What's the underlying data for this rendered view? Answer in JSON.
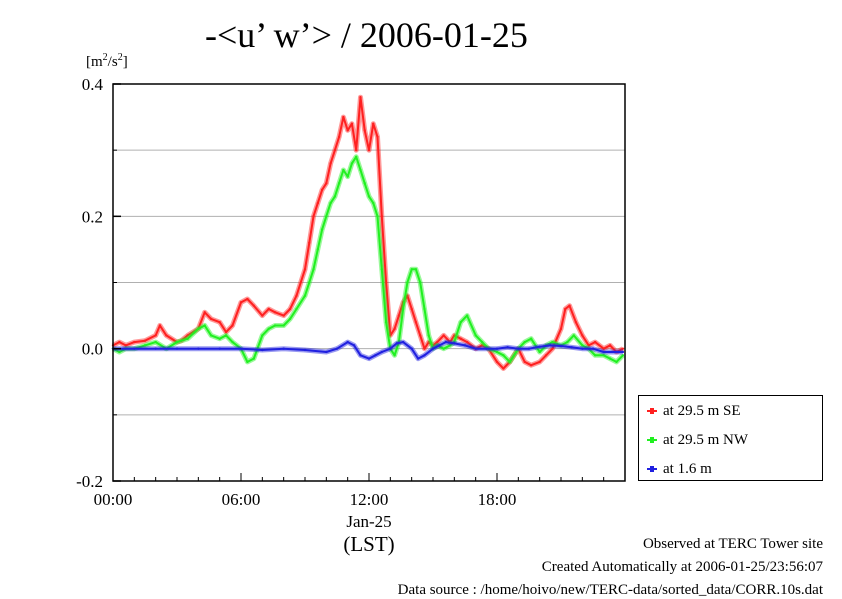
{
  "chart_data": {
    "type": "line",
    "title": "-<u’ w’> / 2006-01-25",
    "ylabel_unit": {
      "base": "[m",
      "sup": "2",
      "mid": "/s",
      "sup2": "2",
      "end": "]"
    },
    "ylim": [
      -0.2,
      0.4
    ],
    "yticks": [
      "-0.2",
      "0.0",
      "0.2",
      "0.4"
    ],
    "xlim": [
      0,
      24
    ],
    "xticks": [
      {
        "value": 0,
        "label": "00:00"
      },
      {
        "value": 6,
        "label": "06:00"
      },
      {
        "value": 12,
        "label": "12:00"
      },
      {
        "value": 18,
        "label": "18:00"
      }
    ],
    "xlabel_date": "Jan-25",
    "xlabel": "(LST)",
    "grid": true,
    "legend_position": "bottom-right outside",
    "series": [
      {
        "name": "at 29.5 m SE",
        "color": "#ff2020",
        "x": [
          0,
          0.3,
          0.6,
          1,
          1.5,
          2,
          2.2,
          2.5,
          3,
          3.2,
          3.5,
          4,
          4.3,
          4.6,
          5,
          5.3,
          5.6,
          6,
          6.3,
          6.6,
          7,
          7.3,
          7.6,
          8,
          8.3,
          8.6,
          9,
          9.2,
          9.4,
          9.6,
          9.8,
          10,
          10.2,
          10.4,
          10.6,
          10.8,
          11,
          11.2,
          11.4,
          11.6,
          11.8,
          12,
          12.2,
          12.4,
          12.6,
          12.8,
          13,
          13.2,
          13.4,
          13.6,
          13.8,
          14,
          14.2,
          14.4,
          14.6,
          14.8,
          15,
          15.2,
          15.5,
          15.8,
          16,
          16.3,
          16.6,
          17,
          17.3,
          17.6,
          18,
          18.3,
          18.6,
          19,
          19.3,
          19.6,
          20,
          20.3,
          20.6,
          21,
          21.2,
          21.4,
          21.7,
          22,
          22.3,
          22.6,
          23,
          23.3,
          23.6,
          23.9
        ],
        "y": [
          0.005,
          0.01,
          0.005,
          0.01,
          0.012,
          0.02,
          0.035,
          0.02,
          0.01,
          0.012,
          0.02,
          0.03,
          0.055,
          0.045,
          0.04,
          0.025,
          0.035,
          0.07,
          0.075,
          0.065,
          0.05,
          0.06,
          0.055,
          0.05,
          0.06,
          0.08,
          0.12,
          0.16,
          0.2,
          0.22,
          0.24,
          0.25,
          0.28,
          0.3,
          0.32,
          0.35,
          0.33,
          0.34,
          0.3,
          0.38,
          0.33,
          0.3,
          0.34,
          0.32,
          0.2,
          0.1,
          0.02,
          0.03,
          0.05,
          0.07,
          0.08,
          0.06,
          0.04,
          0.02,
          0.0,
          0.01,
          0.005,
          0.01,
          0.02,
          0.01,
          0.02,
          0.015,
          0.01,
          0.0,
          0.005,
          0.0,
          -0.02,
          -0.03,
          -0.02,
          0.0,
          -0.02,
          -0.025,
          -0.02,
          -0.01,
          0.0,
          0.03,
          0.06,
          0.065,
          0.04,
          0.02,
          0.005,
          0.01,
          0.0,
          0.005,
          -0.005,
          0.0
        ]
      },
      {
        "name": "at 29.5 m NW",
        "color": "#20f020",
        "x": [
          0,
          0.3,
          0.6,
          1,
          1.5,
          2,
          2.5,
          3,
          3.5,
          4,
          4.3,
          4.6,
          5,
          5.3,
          5.6,
          6,
          6.3,
          6.6,
          7,
          7.3,
          7.6,
          8,
          8.3,
          8.6,
          9,
          9.2,
          9.4,
          9.6,
          9.8,
          10,
          10.2,
          10.4,
          10.6,
          10.8,
          11,
          11.2,
          11.4,
          11.6,
          11.8,
          12,
          12.2,
          12.4,
          12.6,
          12.8,
          13,
          13.2,
          13.4,
          13.6,
          13.8,
          14,
          14.2,
          14.4,
          14.6,
          14.8,
          15,
          15.2,
          15.5,
          15.8,
          16,
          16.3,
          16.6,
          17,
          17.3,
          17.6,
          18,
          18.3,
          18.6,
          19,
          19.3,
          19.6,
          20,
          20.3,
          20.6,
          21,
          21.3,
          21.6,
          22,
          22.3,
          22.6,
          23,
          23.3,
          23.6,
          23.9
        ],
        "y": [
          0.0,
          -0.005,
          0.0,
          0.0,
          0.005,
          0.01,
          0.0,
          0.01,
          0.015,
          0.03,
          0.035,
          0.02,
          0.015,
          0.02,
          0.01,
          0.0,
          -0.02,
          -0.015,
          0.02,
          0.03,
          0.035,
          0.035,
          0.045,
          0.06,
          0.08,
          0.1,
          0.12,
          0.15,
          0.18,
          0.2,
          0.22,
          0.23,
          0.25,
          0.27,
          0.26,
          0.28,
          0.29,
          0.27,
          0.25,
          0.23,
          0.22,
          0.2,
          0.12,
          0.04,
          0.0,
          -0.01,
          0.01,
          0.06,
          0.1,
          0.12,
          0.12,
          0.1,
          0.06,
          0.02,
          0.0,
          0.005,
          0.0,
          0.005,
          0.01,
          0.04,
          0.05,
          0.02,
          0.01,
          0.0,
          -0.005,
          -0.01,
          -0.02,
          0.0,
          0.01,
          0.015,
          -0.005,
          0.005,
          0.01,
          0.005,
          0.01,
          0.02,
          0.005,
          0.0,
          -0.01,
          -0.01,
          -0.015,
          -0.02,
          -0.01
        ]
      },
      {
        "name": "at 1.6 m",
        "color": "#2020e0",
        "x": [
          0,
          1,
          2,
          3,
          4,
          5,
          6,
          7,
          8,
          9,
          10,
          10.5,
          11,
          11.3,
          11.6,
          12,
          12.3,
          12.6,
          13,
          13.3,
          13.6,
          14,
          14.3,
          14.6,
          15,
          15.3,
          15.6,
          16,
          16.5,
          17,
          17.5,
          18,
          18.5,
          19,
          19.5,
          20,
          20.5,
          21,
          21.5,
          22,
          22.5,
          23,
          23.9
        ],
        "y": [
          0.0,
          0.0,
          0.0,
          0.0,
          0.0,
          0.0,
          0.0,
          -0.002,
          0.0,
          -0.002,
          -0.005,
          0.0,
          0.01,
          0.005,
          -0.01,
          -0.015,
          -0.01,
          -0.005,
          0.0,
          0.008,
          0.01,
          0.0,
          -0.015,
          -0.01,
          0.0,
          0.005,
          0.01,
          0.008,
          0.005,
          0.0,
          0.0,
          0.0,
          0.002,
          0.0,
          0.0,
          0.003,
          0.005,
          0.004,
          0.002,
          0.0,
          0.0,
          -0.005,
          -0.005
        ]
      }
    ]
  },
  "footer": {
    "line1": "Observed at TERC Tower site",
    "line2": "Created Automatically at 2006-01-25/23:56:07",
    "line3": "Data source : /home/hoivo/new/TERC-data/sorted_data/CORR.10s.dat"
  }
}
